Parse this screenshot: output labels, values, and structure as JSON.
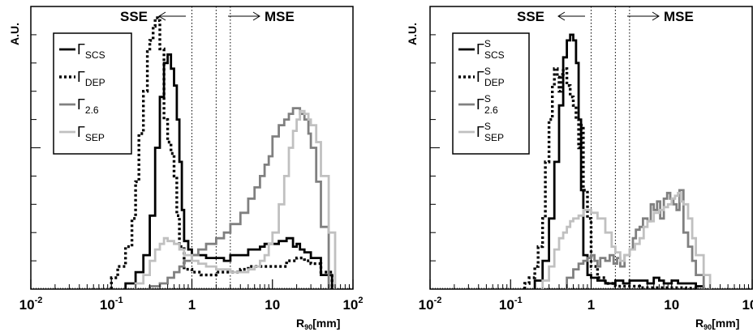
{
  "chart_data": [
    {
      "type": "line",
      "step": true,
      "x_scale": "log",
      "xlim": [
        0.01,
        100
      ],
      "x_ticks": [
        {
          "value": 0.01,
          "base": "10",
          "exp": "-2"
        },
        {
          "value": 0.1,
          "base": "10",
          "exp": "-1"
        },
        {
          "value": 1,
          "base": "1",
          "exp": ""
        },
        {
          "value": 10,
          "base": "10",
          "exp": ""
        },
        {
          "value": 100,
          "base": "10",
          "exp": "2"
        }
      ],
      "ylim": [
        0,
        100
      ],
      "ylabel": "A.U.",
      "xlabel": {
        "main": "R",
        "sub": "90",
        "unit": "[mm]"
      },
      "region_labels": {
        "left": "SSE",
        "right": "MSE"
      },
      "dotted_lines_x": [
        1,
        2,
        3
      ],
      "grid": false,
      "legend_position": "top-left",
      "series": [
        {
          "name": "SCS",
          "greek": "Γ",
          "sup": "",
          "color": "#000000",
          "dash": "solid",
          "x": [
            0.15,
            0.2,
            0.25,
            0.3,
            0.35,
            0.4,
            0.45,
            0.5,
            0.55,
            0.6,
            0.65,
            0.7,
            0.75,
            0.8,
            0.9,
            1.0,
            1.2,
            1.5,
            2,
            2.5,
            3,
            4,
            5,
            6,
            7,
            8,
            10,
            12,
            15,
            18,
            20,
            22,
            25,
            30,
            40,
            55
          ],
          "y": [
            2,
            6,
            12,
            26,
            50,
            68,
            80,
            83,
            78,
            72,
            60,
            45,
            28,
            17,
            14,
            12,
            12,
            11,
            11,
            10,
            12,
            12,
            14,
            14,
            15,
            16,
            16,
            17,
            18,
            15,
            16,
            14,
            13,
            11,
            5,
            0
          ]
        },
        {
          "name": "DEP",
          "greek": "Γ",
          "sup": "",
          "color": "#000000",
          "dash": "dotted",
          "x": [
            0.1,
            0.12,
            0.15,
            0.18,
            0.2,
            0.22,
            0.25,
            0.28,
            0.3,
            0.33,
            0.35,
            0.38,
            0.4,
            0.45,
            0.5,
            0.55,
            0.6,
            0.65,
            0.7,
            0.8,
            1.0,
            1.3,
            1.6,
            2,
            3,
            4,
            5,
            7,
            10,
            15,
            20,
            25,
            30,
            40,
            55
          ],
          "y": [
            4,
            8,
            15,
            25,
            38,
            55,
            70,
            84,
            88,
            93,
            96,
            95,
            85,
            60,
            52,
            48,
            40,
            26,
            15,
            7,
            6,
            5,
            5,
            6,
            6,
            7,
            8,
            8,
            8,
            10,
            11,
            10,
            9,
            6,
            0
          ]
        },
        {
          "name": "2.6",
          "greek": "Γ",
          "sup": "",
          "color": "#808080",
          "dash": "solid",
          "x": [
            0.3,
            0.4,
            0.5,
            0.6,
            0.7,
            0.8,
            1.0,
            1.2,
            1.5,
            2,
            2.5,
            3,
            4,
            5,
            6,
            7,
            8,
            9,
            10,
            12,
            14,
            16,
            18,
            20,
            22,
            25,
            28,
            30,
            35,
            40,
            50
          ],
          "y": [
            1,
            2,
            4,
            6,
            8,
            10,
            12,
            14,
            16,
            18,
            20,
            23,
            27,
            32,
            36,
            40,
            44,
            47,
            54,
            58,
            60,
            62,
            64,
            64,
            62,
            60,
            55,
            50,
            38,
            22,
            0
          ]
        },
        {
          "name": "SEP",
          "greek": "Γ",
          "sup": "",
          "color": "#c0c0c0",
          "dash": "solid",
          "x": [
            0.2,
            0.25,
            0.3,
            0.35,
            0.4,
            0.45,
            0.5,
            0.6,
            0.7,
            0.8,
            1.0,
            1.2,
            1.5,
            2,
            3,
            4,
            5,
            6,
            7,
            8,
            9,
            10,
            12,
            14,
            16,
            18,
            20,
            22,
            25,
            28,
            30,
            35,
            40,
            50,
            60
          ],
          "y": [
            2,
            5,
            10,
            14,
            16,
            18,
            17,
            16,
            14,
            12,
            10,
            9,
            8,
            7,
            6,
            6,
            7,
            8,
            10,
            12,
            16,
            20,
            30,
            40,
            50,
            56,
            60,
            63,
            62,
            60,
            58,
            52,
            40,
            20,
            0
          ]
        }
      ]
    },
    {
      "type": "line",
      "step": true,
      "x_scale": "log",
      "xlim": [
        0.01,
        100
      ],
      "x_ticks": [
        {
          "value": 0.01,
          "base": "10",
          "exp": "-2"
        },
        {
          "value": 0.1,
          "base": "10",
          "exp": "-1"
        },
        {
          "value": 1,
          "base": "1",
          "exp": ""
        },
        {
          "value": 10,
          "base": "10",
          "exp": ""
        },
        {
          "value": 100,
          "base": "10",
          "exp": "2"
        }
      ],
      "ylim": [
        0,
        100
      ],
      "ylabel": "A.U.",
      "xlabel": {
        "main": "R",
        "sub": "90",
        "unit": "[mm]"
      },
      "region_labels": {
        "left": "SSE",
        "right": "MSE"
      },
      "dotted_lines_x": [
        1,
        2,
        3
      ],
      "grid": false,
      "legend_position": "top-left",
      "series": [
        {
          "name": "SCS",
          "greek": "Γ",
          "sup": "S",
          "color": "#000000",
          "dash": "solid",
          "x": [
            0.2,
            0.25,
            0.3,
            0.35,
            0.4,
            0.45,
            0.5,
            0.55,
            0.6,
            0.65,
            0.7,
            0.75,
            0.8,
            0.9,
            1.0,
            1.2,
            1.5,
            2,
            2.5,
            3,
            4,
            5,
            6,
            7,
            8,
            10,
            12,
            15,
            20,
            25
          ],
          "y": [
            3,
            10,
            25,
            45,
            65,
            82,
            88,
            90,
            88,
            80,
            60,
            35,
            12,
            5,
            4,
            3,
            2,
            3,
            2,
            3,
            3,
            2,
            4,
            3,
            2,
            3,
            2,
            2,
            1,
            0
          ]
        },
        {
          "name": "DEP",
          "greek": "Γ",
          "sup": "S",
          "color": "#000000",
          "dash": "dotted",
          "x": [
            0.15,
            0.17,
            0.2,
            0.22,
            0.25,
            0.27,
            0.3,
            0.33,
            0.35,
            0.38,
            0.4,
            0.42,
            0.45,
            0.5,
            0.55,
            0.6,
            0.65,
            0.7,
            0.75,
            0.8,
            0.9,
            1.0,
            1.2,
            1.5,
            2,
            3,
            4,
            5,
            7,
            10,
            15,
            20
          ],
          "y": [
            2,
            4,
            8,
            15,
            25,
            45,
            60,
            72,
            78,
            75,
            70,
            76,
            78,
            72,
            68,
            65,
            60,
            50,
            58,
            35,
            25,
            8,
            4,
            2,
            1,
            1,
            0.5,
            0.5,
            0.5,
            0.5,
            0.3,
            0
          ]
        },
        {
          "name": "2.6",
          "greek": "Γ",
          "sup": "S",
          "color": "#808080",
          "dash": "solid",
          "x": [
            0.5,
            0.6,
            0.7,
            0.8,
            0.9,
            1.0,
            1.1,
            1.2,
            1.3,
            1.5,
            1.7,
            1.9,
            2.1,
            2.3,
            2.6,
            3.0,
            3.3,
            3.6,
            4.0,
            4.4,
            5,
            5.5,
            6,
            6.6,
            7.2,
            8,
            8.8,
            9.6,
            10.5,
            11.5,
            12.5,
            14,
            16,
            18,
            20,
            25
          ],
          "y": [
            4,
            7,
            9,
            10,
            11,
            12,
            10,
            8,
            11,
            10,
            12,
            9,
            11,
            8,
            12,
            14,
            18,
            21,
            22,
            25,
            24,
            30,
            28,
            31,
            25,
            32,
            34,
            32,
            30,
            28,
            35,
            20,
            15,
            10,
            5,
            0
          ]
        },
        {
          "name": "SEP",
          "greek": "Γ",
          "sup": "S",
          "color": "#c0c0c0",
          "dash": "solid",
          "x": [
            0.25,
            0.3,
            0.35,
            0.4,
            0.45,
            0.5,
            0.55,
            0.6,
            0.7,
            0.8,
            1.0,
            1.2,
            1.5,
            1.8,
            2,
            2.3,
            2.6,
            3,
            3.5,
            4,
            4.5,
            5,
            6,
            7,
            8,
            9,
            10,
            11,
            12,
            13,
            14,
            16,
            18,
            20,
            25,
            30
          ],
          "y": [
            3,
            8,
            14,
            18,
            20,
            22,
            24,
            25,
            26,
            28,
            27,
            25,
            20,
            15,
            13,
            10,
            12,
            14,
            16,
            18,
            22,
            24,
            27,
            28,
            29,
            30,
            32,
            33,
            34,
            31,
            30,
            25,
            18,
            12,
            5,
            0
          ]
        }
      ]
    }
  ]
}
